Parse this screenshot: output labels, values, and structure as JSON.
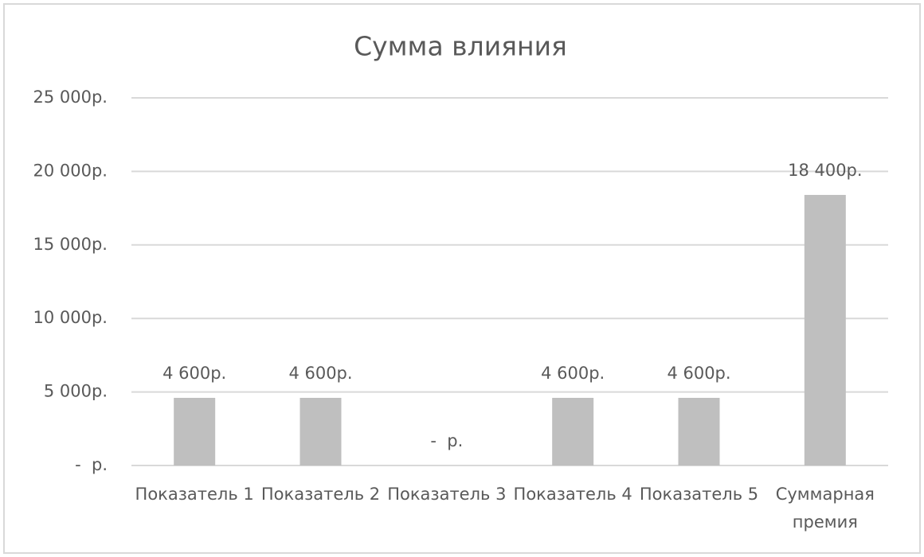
{
  "chart_data": {
    "type": "bar",
    "title": "Сумма влияния",
    "categories": [
      "Показатель 1",
      "Показатель 2",
      "Показатель 3",
      "Показатель 4",
      "Показатель 5",
      "Суммарная премия"
    ],
    "values": [
      4600,
      4600,
      0,
      4600,
      4600,
      18400
    ],
    "value_labels": [
      "4 600р.",
      "4 600р.",
      "-  р.",
      "4 600р.",
      "4 600р.",
      "18 400р."
    ],
    "color": "#bfbfbf",
    "ylim": [
      0,
      25000
    ],
    "yticks": [
      {
        "value": 0,
        "label": "-  р."
      },
      {
        "value": 5000,
        "label": "5 000р."
      },
      {
        "value": 10000,
        "label": "10 000р."
      },
      {
        "value": 15000,
        "label": "15 000р."
      },
      {
        "value": 20000,
        "label": "20 000р."
      },
      {
        "value": 25000,
        "label": "25 000р."
      }
    ],
    "grid": true
  }
}
